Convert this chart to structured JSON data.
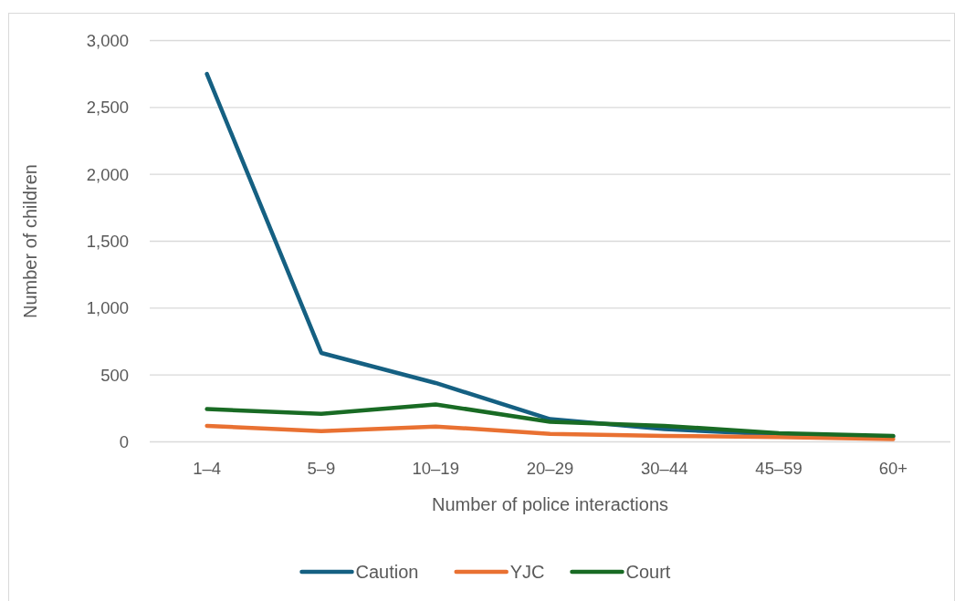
{
  "chart_data": {
    "type": "line",
    "xlabel": "Number of police interactions",
    "ylabel": "Number of children",
    "categories": [
      "1–4",
      "5–9",
      "10–19",
      "20–29",
      "30–44",
      "45–59",
      "60+"
    ],
    "series": [
      {
        "name": "Caution",
        "color": "#156082",
        "values": [
          2750,
          665,
          440,
          170,
          95,
          55,
          40
        ]
      },
      {
        "name": "YJC",
        "color": "#e97132",
        "values": [
          120,
          80,
          115,
          60,
          45,
          35,
          20
        ]
      },
      {
        "name": "Court",
        "color": "#196b24",
        "values": [
          245,
          210,
          280,
          150,
          120,
          65,
          45
        ]
      }
    ],
    "ylim": [
      0,
      3000
    ],
    "yticks": [
      0,
      500,
      {
        "value": 1000,
        "label": "1,000"
      },
      {
        "value": 1500,
        "label": "1,500"
      },
      {
        "value": 2000,
        "label": "2,000"
      },
      {
        "value": 2500,
        "label": "2,500"
      },
      {
        "value": 3000,
        "label": "3,000"
      }
    ],
    "grid": "y",
    "legend": "bottom",
    "marker": "none",
    "line_style": "solid"
  }
}
